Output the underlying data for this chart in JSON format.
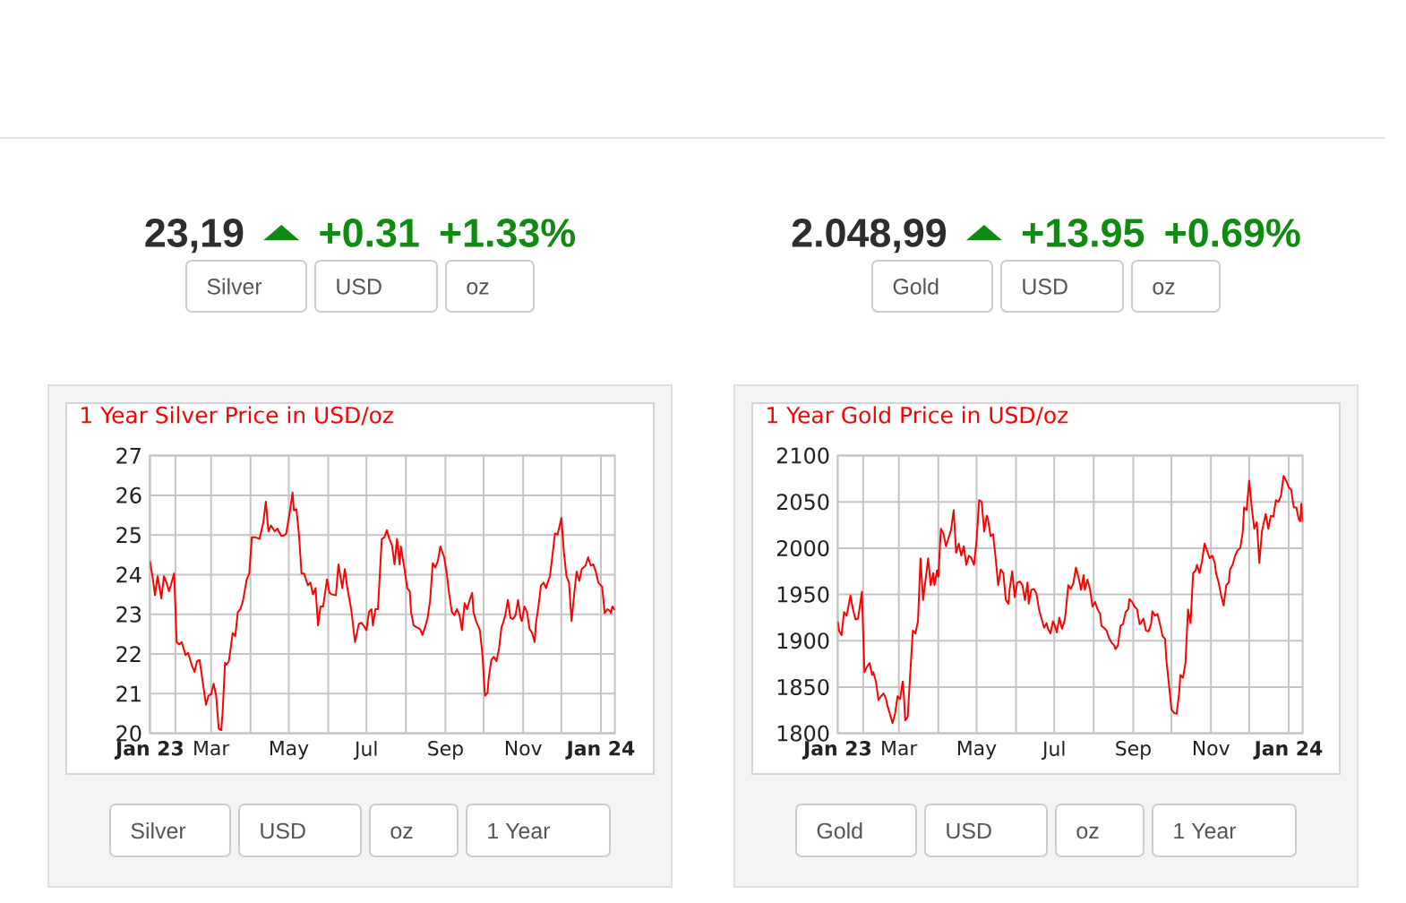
{
  "chart_data": [
    {
      "type": "other",
      "annotations": [
        "23,19",
        "▲",
        "+0.31",
        "+1.33%",
        "Silver",
        "USD",
        "oz"
      ]
    },
    {
      "type": "other",
      "annotations": [
        "2.048,99",
        "▲",
        "+13.95",
        "+0.69%",
        "Gold",
        "USD",
        "oz"
      ]
    },
    {
      "type": "line",
      "title": "1 Year Silver Price in USD/oz",
      "color": "#ff0000",
      "grid": true,
      "xlim": [
        "2023-01-12",
        "2024-01-12"
      ],
      "ylim": [
        20,
        27
      ],
      "yticks": [
        20,
        21,
        22,
        23,
        24,
        25,
        26,
        27
      ],
      "xticks": [
        {
          "value": "2023-01-12",
          "label": "Jan 23"
        },
        {
          "value": "2023-02-01",
          "label": null
        },
        {
          "value": "2023-03-01",
          "label": "Mar"
        },
        {
          "value": "2023-04-01",
          "label": null
        },
        {
          "value": "2023-05-01",
          "label": "May"
        },
        {
          "value": "2023-06-01",
          "label": null
        },
        {
          "value": "2023-07-01",
          "label": "Jul"
        },
        {
          "value": "2023-08-01",
          "label": null
        },
        {
          "value": "2023-09-01",
          "label": "Sep"
        },
        {
          "value": "2023-10-01",
          "label": null
        },
        {
          "value": "2023-11-01",
          "label": "Nov"
        },
        {
          "value": "2023-12-01",
          "label": null
        },
        {
          "value": "2024-01-01",
          "label": "Jan 24"
        }
      ],
      "x": [
        "2023-01-12",
        "2023-01-14",
        "2023-01-16",
        "2023-01-18",
        "2023-01-21",
        "2023-01-23",
        "2023-01-25",
        "2023-01-27",
        "2023-01-29",
        "2023-01-31",
        "2023-02-02",
        "2023-02-04",
        "2023-02-06",
        "2023-02-09",
        "2023-02-11",
        "2023-02-14",
        "2023-02-16",
        "2023-02-18",
        "2023-02-20",
        "2023-02-22",
        "2023-02-25",
        "2023-02-27",
        "2023-03-01",
        "2023-03-03",
        "2023-03-05",
        "2023-03-07",
        "2023-03-09",
        "2023-03-10",
        "2023-03-12",
        "2023-03-13",
        "2023-03-15",
        "2023-03-18",
        "2023-03-20",
        "2023-03-22",
        "2023-03-24",
        "2023-03-26",
        "2023-03-29",
        "2023-03-31",
        "2023-04-02",
        "2023-04-05",
        "2023-04-08",
        "2023-04-11",
        "2023-04-13",
        "2023-04-15",
        "2023-04-17",
        "2023-04-20",
        "2023-04-22",
        "2023-04-25",
        "2023-04-27",
        "2023-04-29",
        "2023-05-02",
        "2023-05-04",
        "2023-05-05",
        "2023-05-07",
        "2023-05-09",
        "2023-05-11",
        "2023-05-13",
        "2023-05-16",
        "2023-05-18",
        "2023-05-20",
        "2023-05-22",
        "2023-05-24",
        "2023-05-26",
        "2023-05-28",
        "2023-05-31",
        "2023-06-02",
        "2023-06-04",
        "2023-06-07",
        "2023-06-09",
        "2023-06-12",
        "2023-06-14",
        "2023-06-16",
        "2023-06-19",
        "2023-06-22",
        "2023-06-25",
        "2023-06-27",
        "2023-06-29",
        "2023-07-01",
        "2023-07-03",
        "2023-07-05",
        "2023-07-06",
        "2023-07-08",
        "2023-07-10",
        "2023-07-13",
        "2023-07-15",
        "2023-07-17",
        "2023-07-19",
        "2023-07-21",
        "2023-07-23",
        "2023-07-25",
        "2023-07-27",
        "2023-07-28",
        "2023-07-31",
        "2023-08-02",
        "2023-08-04",
        "2023-08-05",
        "2023-08-07",
        "2023-08-09",
        "2023-08-12",
        "2023-08-14",
        "2023-08-16",
        "2023-08-18",
        "2023-08-20",
        "2023-08-22",
        "2023-08-24",
        "2023-08-26",
        "2023-08-28",
        "2023-08-31",
        "2023-09-02",
        "2023-09-04",
        "2023-09-06",
        "2023-09-08",
        "2023-09-10",
        "2023-09-12",
        "2023-09-14",
        "2023-09-16",
        "2023-09-18",
        "2023-09-20",
        "2023-09-22",
        "2023-09-23",
        "2023-09-25",
        "2023-09-28",
        "2023-09-30",
        "2023-10-02",
        "2023-10-04",
        "2023-10-05",
        "2023-10-07",
        "2023-10-09",
        "2023-10-11",
        "2023-10-13",
        "2023-10-15",
        "2023-10-16",
        "2023-10-18",
        "2023-10-20",
        "2023-10-22",
        "2023-10-24",
        "2023-10-26",
        "2023-10-28",
        "2023-10-30",
        "2023-10-31",
        "2023-11-02",
        "2023-11-04",
        "2023-11-06",
        "2023-11-08",
        "2023-11-10",
        "2023-11-11",
        "2023-11-13",
        "2023-11-15",
        "2023-11-17",
        "2023-11-19",
        "2023-11-20",
        "2023-11-22",
        "2023-11-24",
        "2023-11-26",
        "2023-11-28",
        "2023-12-01",
        "2023-12-03",
        "2023-12-05",
        "2023-12-07",
        "2023-12-09",
        "2023-12-11",
        "2023-12-13",
        "2023-12-15",
        "2023-12-17",
        "2023-12-20",
        "2023-12-22",
        "2023-12-24",
        "2023-12-26",
        "2023-12-28",
        "2023-12-30",
        "2024-01-02",
        "2024-01-04",
        "2024-01-06",
        "2024-01-08",
        "2024-01-09",
        "2024-01-10",
        "2024-01-12"
      ],
      "values": [
        24.34,
        23.96,
        23.48,
        23.96,
        23.4,
        23.96,
        23.8,
        23.58,
        23.8,
        24.03,
        22.3,
        22.24,
        22.3,
        21.97,
        22.03,
        21.7,
        21.55,
        21.82,
        21.85,
        21.4,
        20.72,
        20.95,
        20.98,
        21.25,
        20.95,
        20.12,
        20.08,
        20.5,
        21.78,
        21.73,
        21.82,
        22.53,
        22.45,
        23.06,
        23.13,
        23.33,
        23.88,
        24.03,
        24.94,
        24.94,
        24.9,
        25.31,
        25.84,
        25.09,
        25.24,
        25.09,
        25.16,
        24.98,
        24.98,
        25.04,
        25.62,
        26.07,
        25.62,
        25.65,
        25.01,
        24.03,
        24.03,
        23.73,
        23.8,
        23.5,
        23.66,
        22.72,
        23.2,
        23.2,
        23.88,
        23.54,
        23.5,
        23.48,
        24.26,
        23.66,
        24.14,
        23.66,
        23.13,
        22.3,
        22.76,
        22.79,
        22.7,
        22.6,
        23.06,
        23.13,
        22.72,
        23.13,
        23.13,
        24.9,
        24.94,
        25.12,
        24.9,
        24.74,
        24.26,
        24.9,
        24.26,
        24.71,
        24.11,
        23.66,
        23.58,
        23.06,
        22.72,
        22.68,
        22.63,
        22.48,
        22.68,
        22.91,
        23.36,
        24.29,
        24.18,
        24.34,
        24.71,
        24.44,
        24.03,
        23.5,
        23.06,
        22.98,
        23.13,
        22.98,
        22.6,
        23.28,
        23.13,
        23.36,
        23.54,
        23.06,
        22.83,
        22.6,
        22.0,
        20.95,
        21.02,
        21.4,
        21.85,
        21.93,
        21.82,
        22.12,
        22.68,
        22.76,
        22.98,
        23.36,
        22.91,
        22.88,
        22.98,
        23.36,
        22.91,
        22.83,
        23.2,
        23.06,
        22.63,
        22.53,
        22.3,
        22.76,
        23.2,
        23.73,
        23.8,
        23.66,
        23.78,
        23.96,
        24.49,
        25.04,
        25.01,
        25.43,
        24.56,
        23.96,
        23.8,
        22.83,
        23.5,
        24.08,
        23.84,
        24.14,
        24.23,
        24.44,
        24.23,
        24.26,
        24.08,
        23.8,
        23.69,
        23.03,
        23.13,
        23.09,
        23.03,
        23.2,
        23.1
      ],
      "annotations": [
        "Silver",
        "USD",
        "oz",
        "1 Year"
      ]
    },
    {
      "type": "line",
      "title": "1 Year Gold Price in USD/oz",
      "color": "#ff0000",
      "grid": true,
      "xlim": [
        "2023-01-12",
        "2024-01-12"
      ],
      "ylim": [
        1800,
        2100
      ],
      "yticks": [
        1800,
        1850,
        1900,
        1950,
        2000,
        2050,
        2100
      ],
      "xticks": [
        {
          "value": "2023-01-12",
          "label": "Jan 23"
        },
        {
          "value": "2023-02-01",
          "label": null
        },
        {
          "value": "2023-03-01",
          "label": "Mar"
        },
        {
          "value": "2023-04-01",
          "label": null
        },
        {
          "value": "2023-05-01",
          "label": "May"
        },
        {
          "value": "2023-06-01",
          "label": null
        },
        {
          "value": "2023-07-01",
          "label": "Jul"
        },
        {
          "value": "2023-08-01",
          "label": null
        },
        {
          "value": "2023-09-01",
          "label": "Sep"
        },
        {
          "value": "2023-10-01",
          "label": null
        },
        {
          "value": "2023-11-01",
          "label": "Nov"
        },
        {
          "value": "2023-12-01",
          "label": null
        },
        {
          "value": "2024-01-01",
          "label": "Jan 24"
        }
      ],
      "x": [
        "2023-01-12",
        "2023-01-13",
        "2023-01-15",
        "2023-01-17",
        "2023-01-19",
        "2023-01-20",
        "2023-01-22",
        "2023-01-24",
        "2023-01-26",
        "2023-01-28",
        "2023-01-31",
        "2023-02-02",
        "2023-02-04",
        "2023-02-06",
        "2023-02-08",
        "2023-02-09",
        "2023-02-11",
        "2023-02-13",
        "2023-02-15",
        "2023-02-17",
        "2023-02-19",
        "2023-02-20",
        "2023-02-22",
        "2023-02-24",
        "2023-02-26",
        "2023-02-28",
        "2023-03-02",
        "2023-03-04",
        "2023-03-05",
        "2023-03-06",
        "2023-03-08",
        "2023-03-10",
        "2023-03-12",
        "2023-03-14",
        "2023-03-16",
        "2023-03-18",
        "2023-03-20",
        "2023-03-22",
        "2023-03-24",
        "2023-03-26",
        "2023-03-28",
        "2023-03-29",
        "2023-03-31",
        "2023-04-01",
        "2023-04-03",
        "2023-04-05",
        "2023-04-07",
        "2023-04-09",
        "2023-04-11",
        "2023-04-13",
        "2023-04-15",
        "2023-04-17",
        "2023-04-19",
        "2023-04-21",
        "2023-04-23",
        "2023-04-25",
        "2023-04-27",
        "2023-04-29",
        "2023-05-01",
        "2023-05-03",
        "2023-05-05",
        "2023-05-07",
        "2023-05-09",
        "2023-05-10",
        "2023-05-12",
        "2023-05-14",
        "2023-05-16",
        "2023-05-18",
        "2023-05-20",
        "2023-05-22",
        "2023-05-24",
        "2023-05-26",
        "2023-05-27",
        "2023-05-29",
        "2023-05-31",
        "2023-06-02",
        "2023-06-04",
        "2023-06-06",
        "2023-06-08",
        "2023-06-10",
        "2023-06-11",
        "2023-06-13",
        "2023-06-15",
        "2023-06-17",
        "2023-06-19",
        "2023-06-21",
        "2023-06-23",
        "2023-06-25",
        "2023-06-26",
        "2023-06-28",
        "2023-06-30",
        "2023-07-01",
        "2023-07-03",
        "2023-07-05",
        "2023-07-07",
        "2023-07-09",
        "2023-07-10",
        "2023-07-12",
        "2023-07-14",
        "2023-07-16",
        "2023-07-18",
        "2023-07-20",
        "2023-07-22",
        "2023-07-24",
        "2023-07-25",
        "2023-07-27",
        "2023-07-29",
        "2023-07-31",
        "2023-08-02",
        "2023-08-04",
        "2023-08-06",
        "2023-08-07",
        "2023-08-09",
        "2023-08-11",
        "2023-08-13",
        "2023-08-15",
        "2023-08-17",
        "2023-08-18",
        "2023-08-20",
        "2023-08-22",
        "2023-08-24",
        "2023-08-26",
        "2023-08-28",
        "2023-08-29",
        "2023-08-31",
        "2023-09-02",
        "2023-09-04",
        "2023-09-06",
        "2023-09-07",
        "2023-09-09",
        "2023-09-11",
        "2023-09-13",
        "2023-09-15",
        "2023-09-16",
        "2023-09-18",
        "2023-09-20",
        "2023-09-22",
        "2023-09-24",
        "2023-09-26",
        "2023-09-27",
        "2023-09-29",
        "2023-10-01",
        "2023-10-03",
        "2023-10-05",
        "2023-10-07",
        "2023-10-08",
        "2023-10-10",
        "2023-10-12",
        "2023-10-14",
        "2023-10-16",
        "2023-10-18",
        "2023-10-20",
        "2023-10-21",
        "2023-10-23",
        "2023-10-25",
        "2023-10-27",
        "2023-10-29",
        "2023-10-31",
        "2023-11-02",
        "2023-11-04",
        "2023-11-05",
        "2023-11-07",
        "2023-11-09",
        "2023-11-11",
        "2023-11-13",
        "2023-11-15",
        "2023-11-16",
        "2023-11-18",
        "2023-11-20",
        "2023-11-22",
        "2023-11-24",
        "2023-11-26",
        "2023-11-27",
        "2023-11-29",
        "2023-12-01",
        "2023-12-03",
        "2023-12-05",
        "2023-12-07",
        "2023-12-09",
        "2023-12-11",
        "2023-12-14",
        "2023-12-16",
        "2023-12-18",
        "2023-12-20",
        "2023-12-22",
        "2023-12-24",
        "2023-12-26",
        "2023-12-28",
        "2023-12-30",
        "2024-01-01",
        "2024-01-03",
        "2024-01-05",
        "2024-01-07",
        "2024-01-09",
        "2024-01-10",
        "2024-01-11",
        "2024-01-12"
      ],
      "values": [
        1921,
        1911,
        1906,
        1931,
        1927,
        1934,
        1949,
        1934,
        1923,
        1924,
        1953,
        1866,
        1872,
        1876,
        1863,
        1866,
        1856,
        1836,
        1840,
        1843,
        1837,
        1830,
        1821,
        1811,
        1821,
        1840,
        1837,
        1856,
        1840,
        1814,
        1818,
        1866,
        1911,
        1908,
        1921,
        1989,
        1944,
        1966,
        1989,
        1960,
        1973,
        1960,
        1976,
        1969,
        2021,
        2016,
        2002,
        2011,
        2020,
        2041,
        1995,
        2005,
        1992,
        2002,
        1982,
        1992,
        1989,
        1982,
        2008,
        2052,
        2050,
        2018,
        2035,
        2031,
        2013,
        2015,
        1989,
        1960,
        1977,
        1973,
        1944,
        1940,
        1956,
        1975,
        1947,
        1963,
        1964,
        1960,
        1944,
        1963,
        1940,
        1955,
        1956,
        1951,
        1934,
        1924,
        1914,
        1919,
        1913,
        1908,
        1921,
        1918,
        1909,
        1925,
        1913,
        1921,
        1931,
        1960,
        1956,
        1962,
        1979,
        1969,
        1955,
        1971,
        1955,
        1966,
        1956,
        1937,
        1942,
        1934,
        1929,
        1916,
        1914,
        1911,
        1903,
        1898,
        1895,
        1891,
        1895,
        1916,
        1918,
        1931,
        1934,
        1945,
        1942,
        1937,
        1934,
        1918,
        1919,
        1924,
        1911,
        1910,
        1918,
        1932,
        1927,
        1929,
        1918,
        1905,
        1902,
        1879,
        1853,
        1826,
        1822,
        1821,
        1843,
        1863,
        1860,
        1876,
        1934,
        1919,
        1973,
        1976,
        1982,
        1973,
        1986,
        2005,
        1997,
        1989,
        1992,
        1984,
        1973,
        1963,
        1949,
        1938,
        1960,
        1963,
        1977,
        1982,
        1992,
        1998,
        2000,
        2018,
        2044,
        2041,
        2073,
        2044,
        2021,
        2028,
        1984,
        2018,
        2037,
        2021,
        2035,
        2034,
        2052,
        2050,
        2057,
        2078,
        2073,
        2066,
        2063,
        2044,
        2044,
        2031,
        2029,
        2048,
        2028
      ],
      "annotations": [
        "Gold",
        "USD",
        "oz",
        "1 Year"
      ]
    }
  ]
}
